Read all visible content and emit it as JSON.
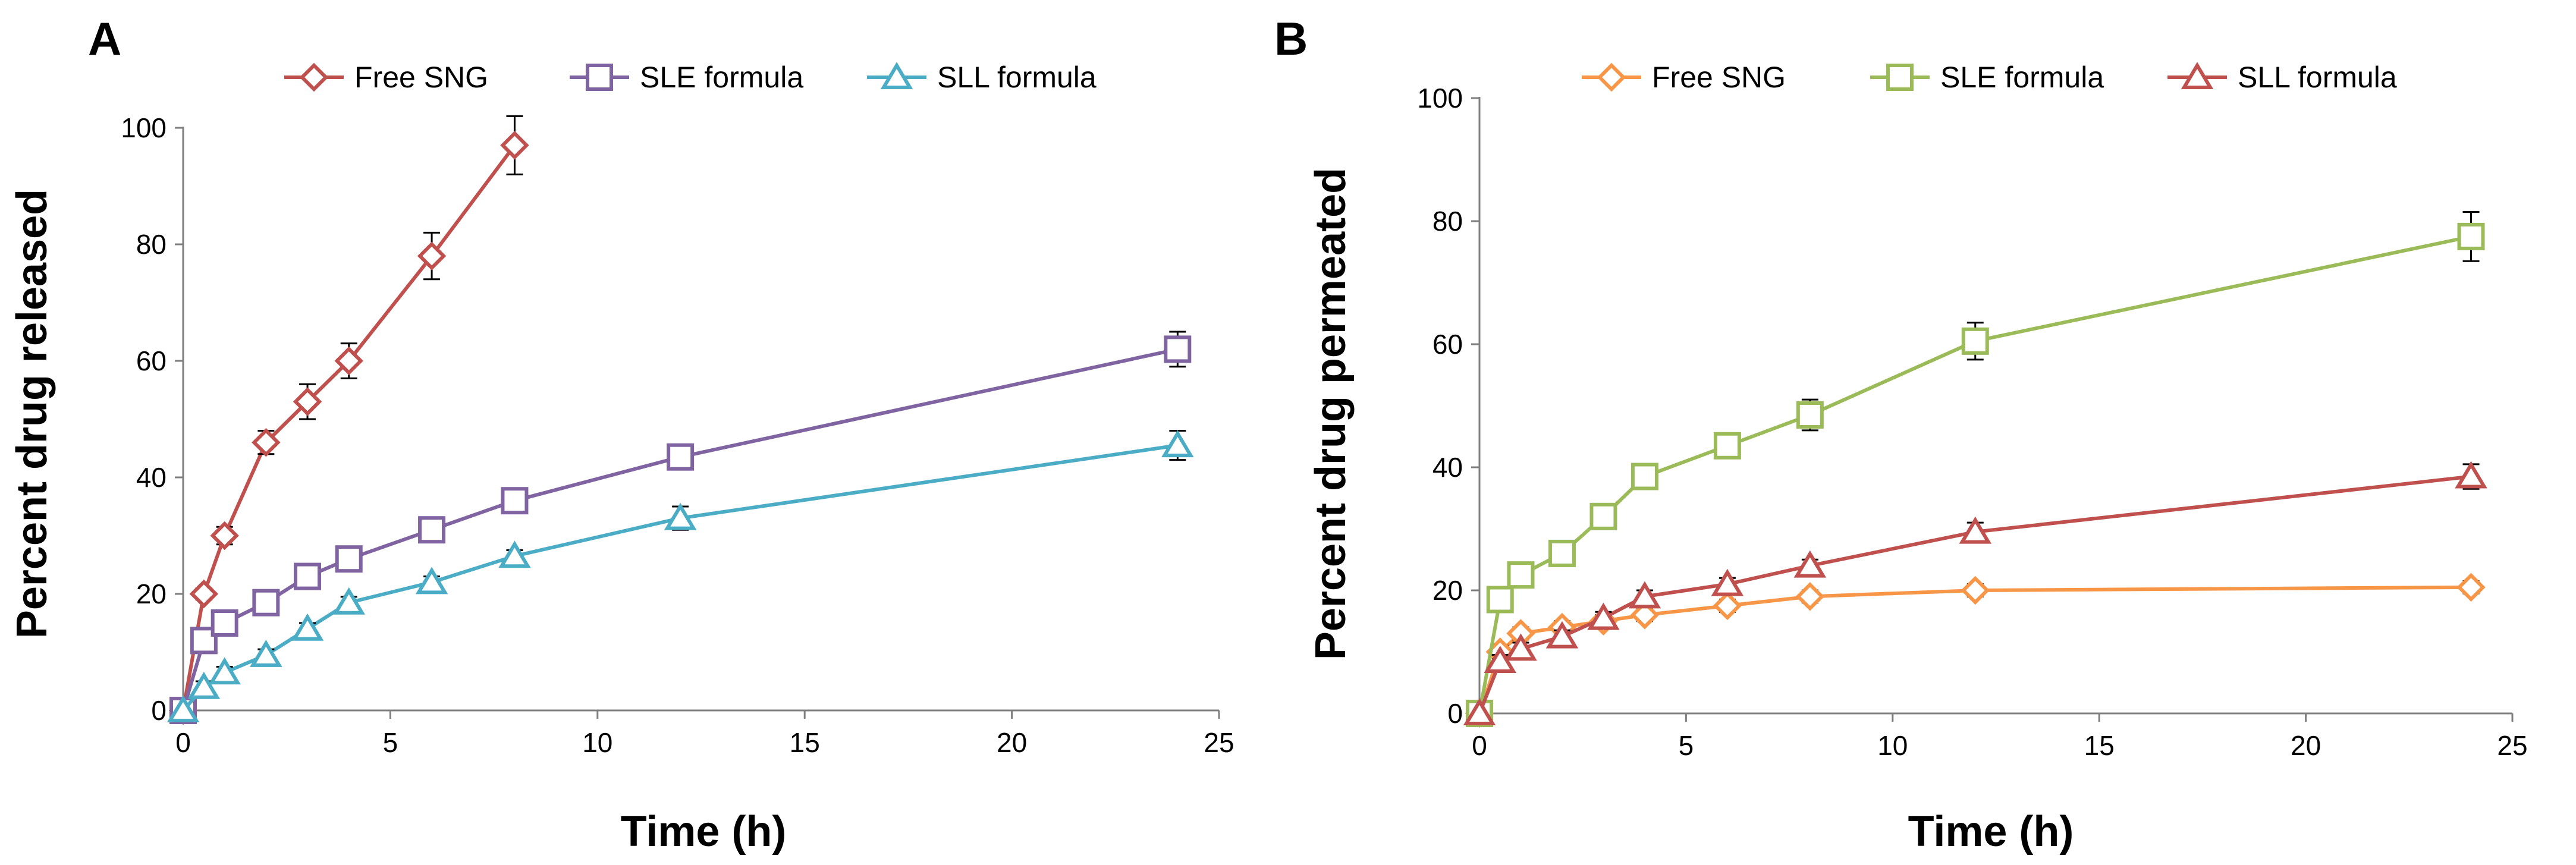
{
  "chart_data": [
    {
      "panel": "A",
      "type": "line",
      "xlabel": "Time (h)",
      "ylabel": "Percent drug released",
      "xlim": [
        0,
        25
      ],
      "ylim": [
        0,
        100
      ],
      "xticks": [
        0,
        5,
        10,
        15,
        20,
        25
      ],
      "yticks": [
        0,
        20,
        40,
        60,
        80,
        100
      ],
      "grid": false,
      "legend_position": "top",
      "series": [
        {
          "name": "Free SNG",
          "color": "#c0504d",
          "marker": "diamond",
          "x": [
            0,
            0.5,
            1,
            2,
            3,
            4,
            6,
            8
          ],
          "y": [
            0,
            20,
            30,
            46,
            53,
            60,
            78,
            97
          ],
          "err": [
            0,
            1,
            1.5,
            2,
            3,
            3,
            4,
            5
          ]
        },
        {
          "name": "SLE formula",
          "color": "#8064a2",
          "marker": "square",
          "x": [
            0,
            0.5,
            1,
            2,
            3,
            4,
            6,
            8,
            12,
            24
          ],
          "y": [
            0,
            12,
            15,
            18.5,
            23,
            26,
            31,
            36,
            43.5,
            62
          ],
          "err": [
            0,
            1,
            1,
            1,
            1,
            1,
            1,
            1,
            1,
            3
          ]
        },
        {
          "name": "SLL formula",
          "color": "#4bacc6",
          "marker": "triangle",
          "x": [
            0,
            0.5,
            1,
            2,
            3,
            4,
            6,
            8,
            12,
            24
          ],
          "y": [
            0,
            4,
            6.5,
            9.5,
            14,
            18.5,
            22,
            26.5,
            33,
            45.5
          ],
          "err": [
            0,
            1,
            1,
            1,
            1,
            1,
            1,
            1,
            2,
            2.5
          ]
        }
      ]
    },
    {
      "panel": "B",
      "type": "line",
      "xlabel": "Time (h)",
      "ylabel": "Percent drug permeated",
      "xlim": [
        0,
        25
      ],
      "ylim": [
        0,
        100
      ],
      "xticks": [
        0,
        5,
        10,
        15,
        20,
        25
      ],
      "yticks": [
        0,
        20,
        40,
        60,
        80,
        100
      ],
      "grid": false,
      "legend_position": "top",
      "series": [
        {
          "name": "Free SNG",
          "color": "#f79646",
          "marker": "diamond",
          "x": [
            0,
            0.5,
            1,
            2,
            3,
            4,
            6,
            8,
            12,
            24
          ],
          "y": [
            0,
            10,
            13,
            14,
            15,
            16,
            17.5,
            19,
            20,
            20.5
          ],
          "err": [
            0,
            1,
            1,
            1,
            1,
            1,
            1,
            1,
            1,
            1
          ]
        },
        {
          "name": "SLE formula",
          "color": "#9bbb59",
          "marker": "square",
          "x": [
            0,
            0.5,
            1,
            2,
            3,
            4,
            6,
            8,
            12,
            24
          ],
          "y": [
            0,
            18.5,
            22.5,
            26,
            32,
            38.5,
            43.5,
            48.5,
            60.5,
            77.5
          ],
          "err": [
            0,
            1,
            1,
            1,
            1.5,
            1.5,
            1.5,
            2.5,
            3,
            4
          ]
        },
        {
          "name": "SLL formula",
          "color": "#c0504d",
          "marker": "triangle",
          "x": [
            0,
            0.5,
            1,
            2,
            3,
            4,
            6,
            8,
            12,
            24
          ],
          "y": [
            0,
            8.5,
            10.5,
            12.5,
            15.5,
            19,
            21,
            24,
            29.5,
            38.5
          ],
          "err": [
            0,
            1,
            1,
            1,
            1,
            1,
            1,
            1,
            1.5,
            2
          ]
        }
      ]
    }
  ]
}
